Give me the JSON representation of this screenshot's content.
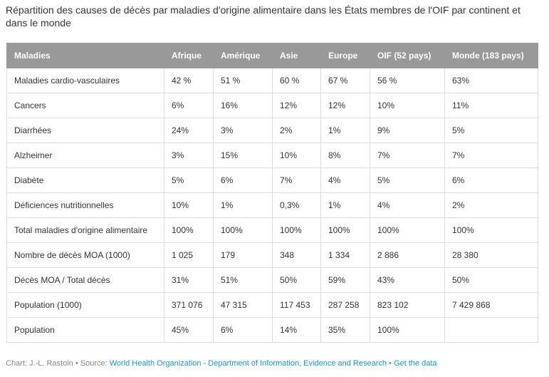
{
  "chart_data": {
    "type": "table",
    "title": "Répartition des causes de décès par maladies d'origine alimentaire dans les États membres de l'OIF par continent et dans le monde",
    "columns": [
      "Maladies",
      "Afrique",
      "Amérique",
      "Asie",
      "Europe",
      "OIF (52 pays)",
      "Monde (183 pays)"
    ],
    "rows": [
      [
        "Maladies cardio-vasculaires",
        "42 %",
        "51 %",
        "60 %",
        "67 %",
        "56 %",
        "63%"
      ],
      [
        "Cancers",
        "6%",
        "16%",
        "12%",
        "12%",
        "10%",
        "11%"
      ],
      [
        "Diarrhées",
        "24%",
        "3%",
        "2%",
        "1%",
        "9%",
        "5%"
      ],
      [
        "Alzheimer",
        "3%",
        "15%",
        "10%",
        "8%",
        "7%",
        "7%"
      ],
      [
        "Diabète",
        "5%",
        "6%",
        "7%",
        "4%",
        "5%",
        "6%"
      ],
      [
        "Déficiences nutritionnelles",
        "10%",
        "1%",
        "0,3%",
        "1%",
        "4%",
        "2%"
      ],
      [
        "Total maladies d'origine alimentaire",
        "100%",
        "100%",
        "100%",
        "100%",
        "100%",
        "100%"
      ],
      [
        "Nombre de décès MOA (1000)",
        "1 025",
        "179",
        "348",
        "1 334",
        "2 886",
        "28 380"
      ],
      [
        "Décès MOA / Total décès",
        "31%",
        "51%",
        "50%",
        "59%",
        "43%",
        "50%"
      ],
      [
        "Population (1000)",
        "371 076",
        "47 315",
        "117 453",
        "287 258",
        "823 102",
        "7 429 868"
      ],
      [
        "Population",
        "45%",
        "6%",
        "14%",
        "35%",
        "100%",
        ""
      ]
    ]
  },
  "footer": {
    "credit": "Chart: J.-L. Rastoin",
    "separator": " • ",
    "source_label": "Source: ",
    "source_link": "World Health Organization - Department of Information, Evidence and Research",
    "get_data": "Get the data"
  },
  "colors": {
    "header_bg": "#999999",
    "header_text": "#ffffff",
    "border": "#dddddd",
    "link": "#1a96c8"
  }
}
